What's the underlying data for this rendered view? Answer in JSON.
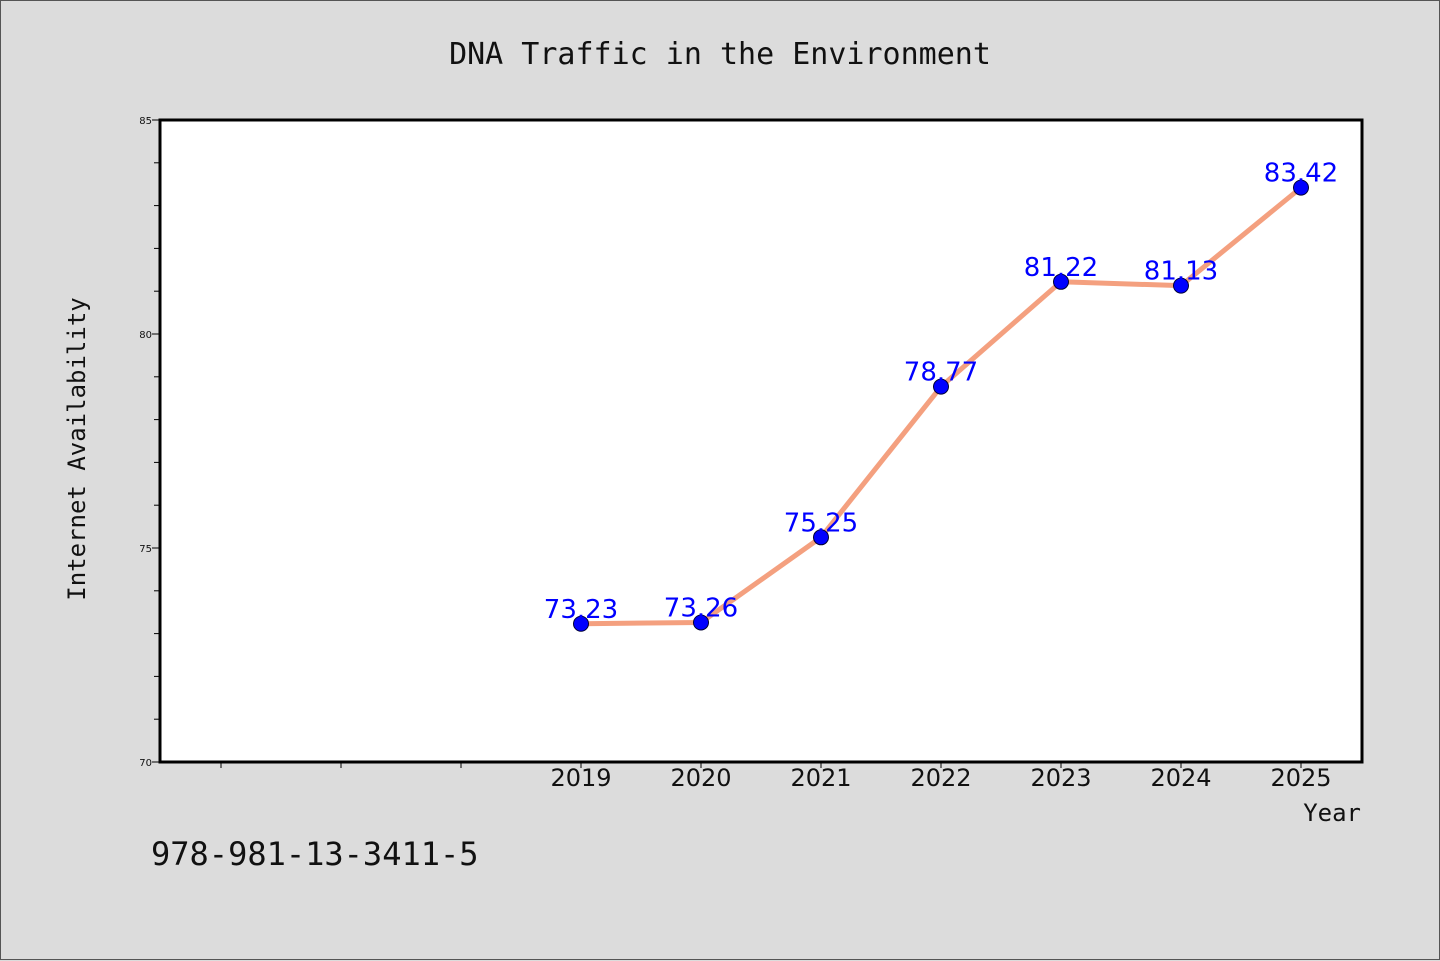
{
  "chart_data": {
    "type": "line",
    "title": "DNA Traffic in the Environment",
    "xlabel": "Year",
    "ylabel": "Internet Availability",
    "categories": [
      "2019",
      "2020",
      "2021",
      "2022",
      "2023",
      "2024",
      "2025"
    ],
    "series": [
      {
        "values": [
          73.23,
          73.26,
          75.25,
          78.77,
          81.22,
          81.13,
          83.42
        ]
      }
    ],
    "data_labels": [
      "73.23",
      "73.26",
      "75.25",
      "78.77",
      "81.22",
      "81.13",
      "83.42"
    ],
    "yticks": [
      "70",
      "75",
      "80",
      "85"
    ],
    "ylim": [
      70,
      85
    ],
    "grid": false,
    "colors": {
      "line": "#f4a07f",
      "marker": "#0000ff",
      "label": "#0000ff",
      "background": "#dcdcdc",
      "plot_bg": "#ffffff"
    }
  },
  "footer_text": "978-981-13-3411-5"
}
